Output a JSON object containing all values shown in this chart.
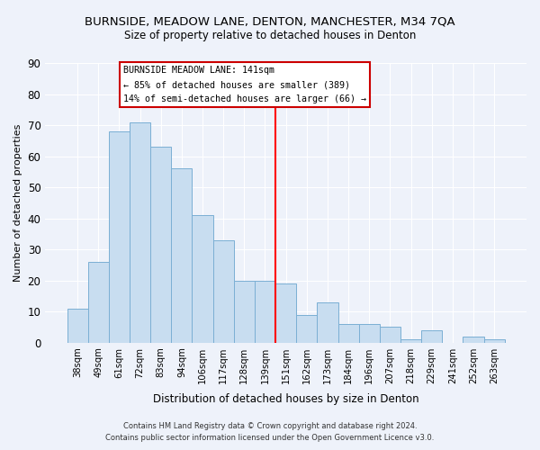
{
  "title": "BURNSIDE, MEADOW LANE, DENTON, MANCHESTER, M34 7QA",
  "subtitle": "Size of property relative to detached houses in Denton",
  "xlabel": "Distribution of detached houses by size in Denton",
  "ylabel": "Number of detached properties",
  "categories": [
    "38sqm",
    "49sqm",
    "61sqm",
    "72sqm",
    "83sqm",
    "94sqm",
    "106sqm",
    "117sqm",
    "128sqm",
    "139sqm",
    "151sqm",
    "162sqm",
    "173sqm",
    "184sqm",
    "196sqm",
    "207sqm",
    "218sqm",
    "229sqm",
    "241sqm",
    "252sqm",
    "263sqm"
  ],
  "values": [
    11,
    26,
    68,
    71,
    63,
    56,
    41,
    33,
    20,
    20,
    19,
    9,
    13,
    6,
    6,
    5,
    1,
    4,
    0,
    2,
    1
  ],
  "bar_color": "#c8ddf0",
  "bar_edge_color": "#7bafd4",
  "vline_x_index": 9.5,
  "annotation_title": "BURNSIDE MEADOW LANE: 141sqm",
  "annotation_line1": "← 85% of detached houses are smaller (389)",
  "annotation_line2": "14% of semi-detached houses are larger (66) →",
  "ylim": [
    0,
    90
  ],
  "yticks": [
    0,
    10,
    20,
    30,
    40,
    50,
    60,
    70,
    80,
    90
  ],
  "footer_line1": "Contains HM Land Registry data © Crown copyright and database right 2024.",
  "footer_line2": "Contains public sector information licensed under the Open Government Licence v3.0.",
  "bg_color": "#eef2fa",
  "plot_bg_color": "#eef2fa",
  "grid_color": "#ffffff"
}
